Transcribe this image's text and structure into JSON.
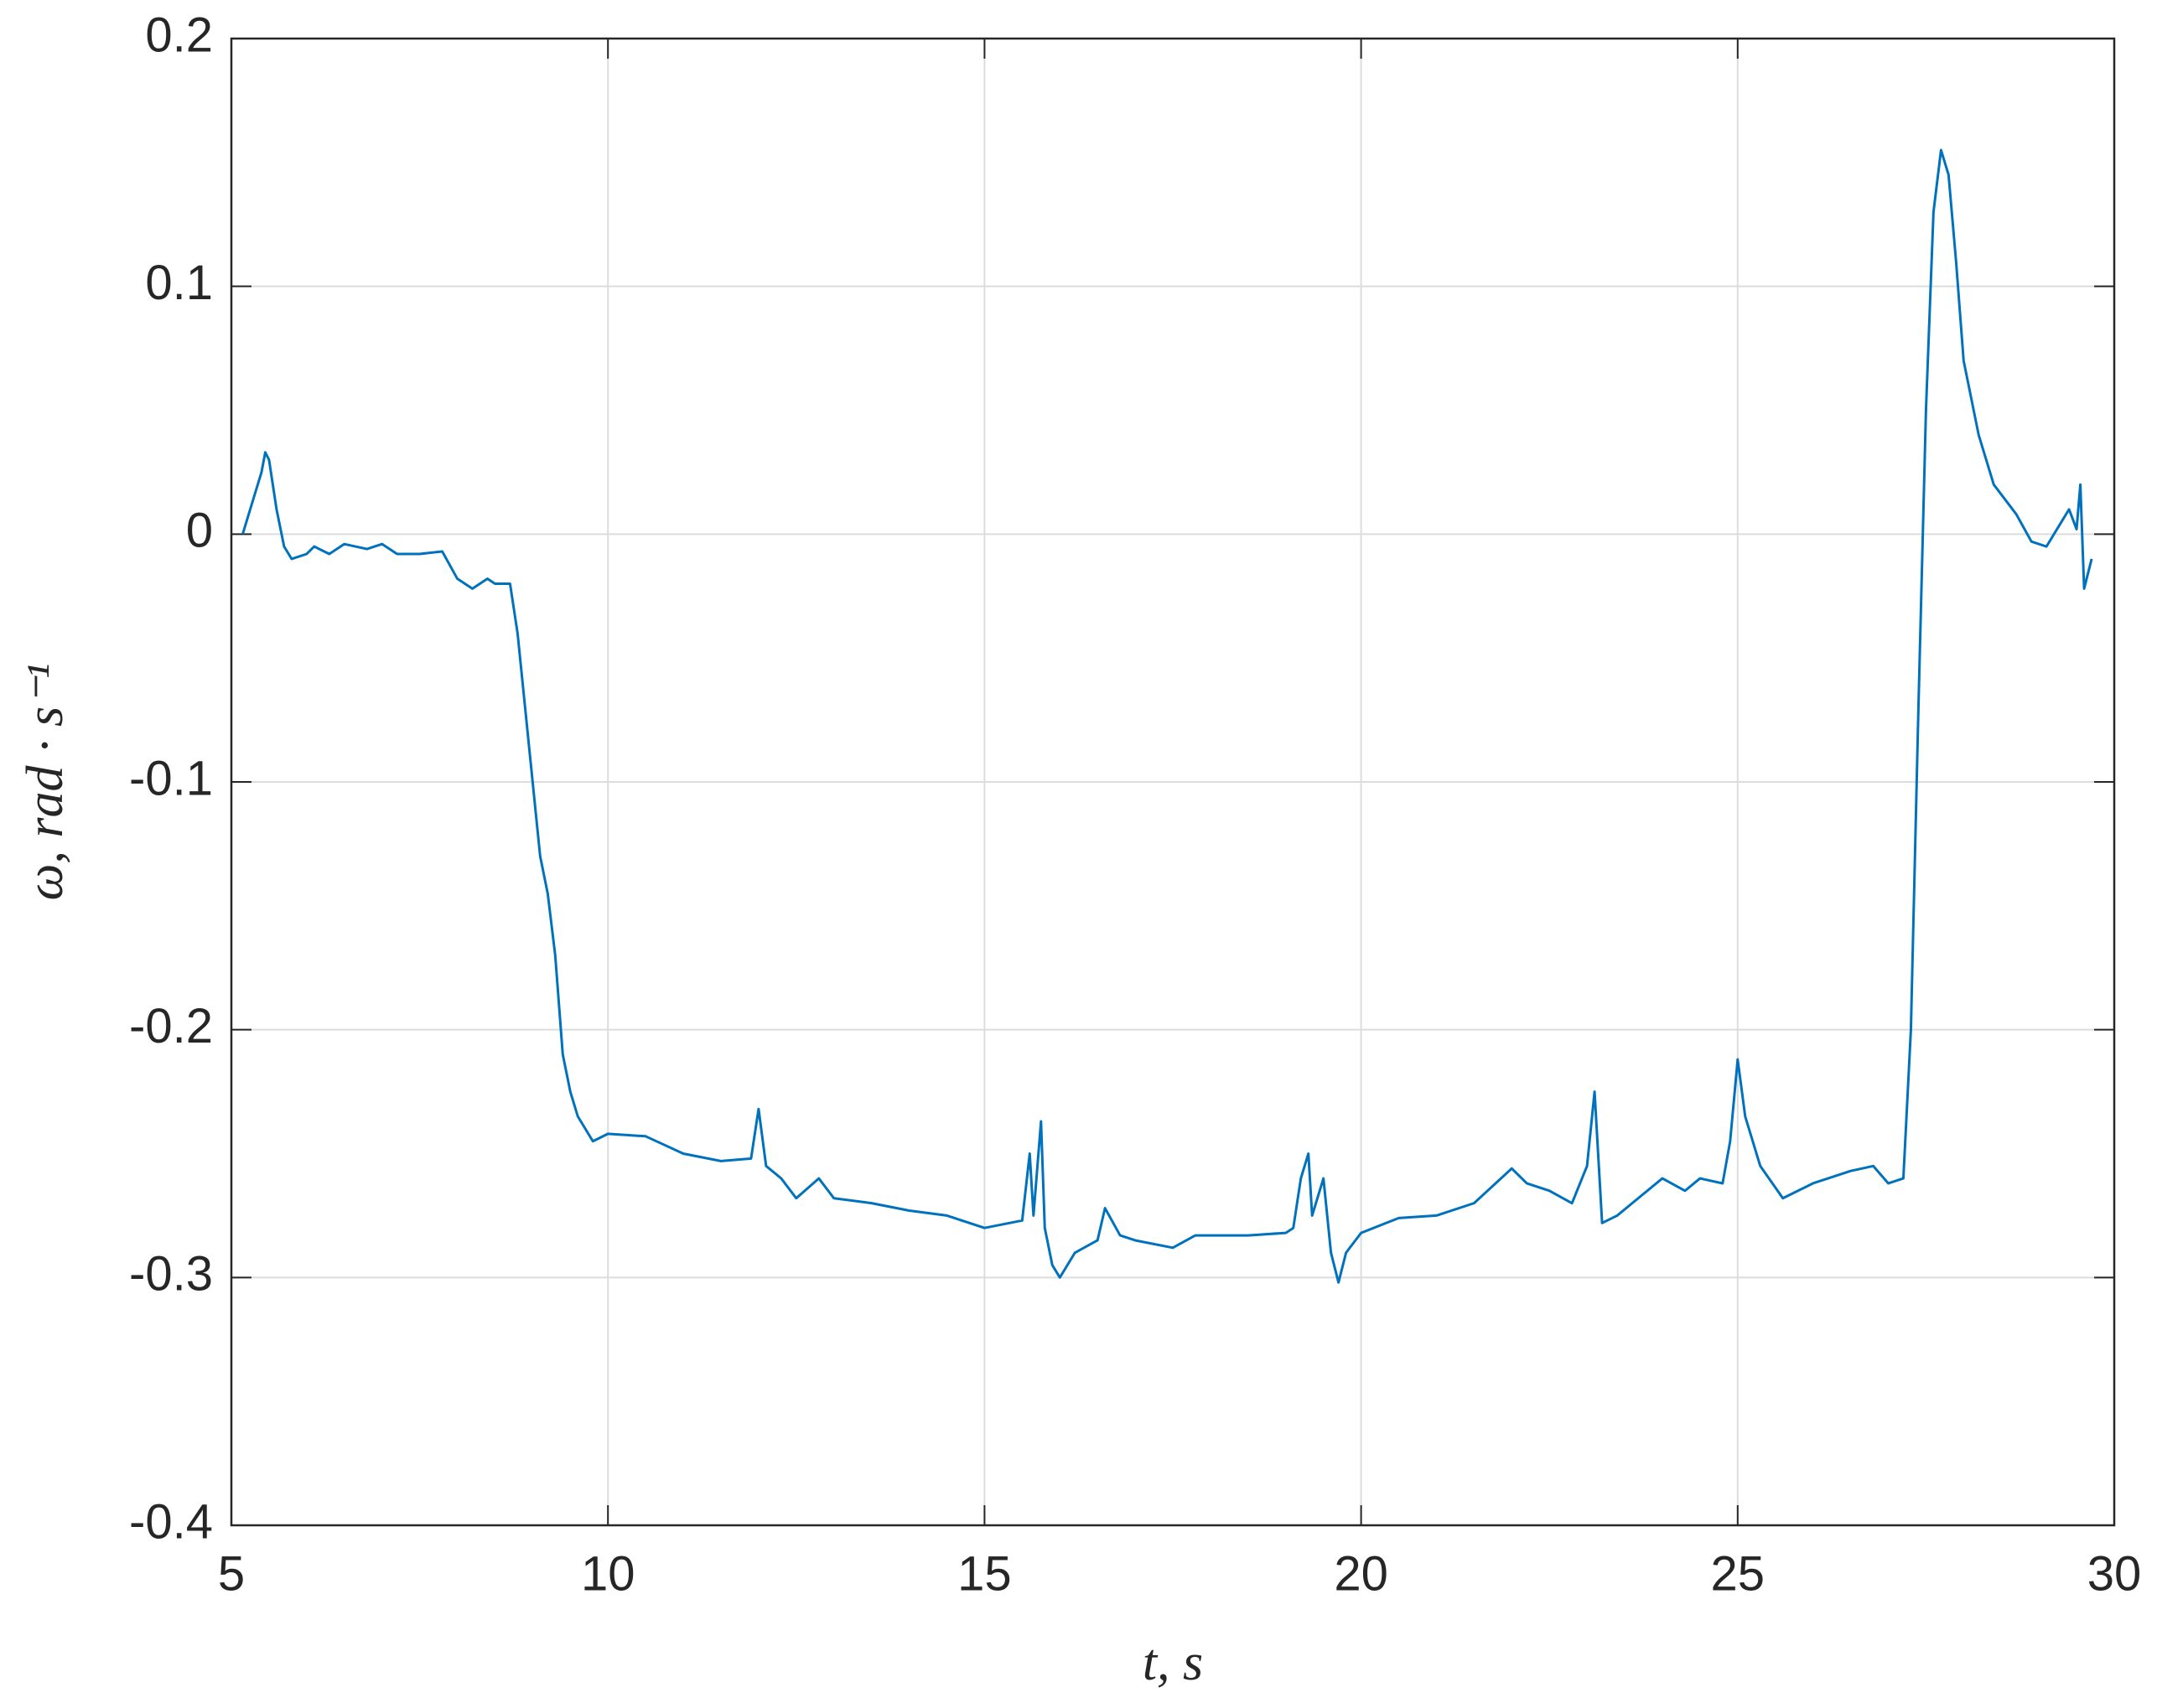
{
  "chart_data": {
    "type": "line",
    "xlabel": "t, s",
    "ylabel": "ω, rad · s⁻¹",
    "x": [
      5.15,
      5.3,
      5.4,
      5.45,
      5.5,
      5.6,
      5.7,
      5.8,
      6.0,
      6.1,
      6.3,
      6.5,
      6.8,
      7.0,
      7.2,
      7.5,
      7.8,
      8.0,
      8.2,
      8.4,
      8.5,
      8.7,
      8.8,
      8.9,
      9.0,
      9.1,
      9.2,
      9.3,
      9.4,
      9.5,
      9.6,
      9.8,
      10.0,
      10.5,
      11.0,
      11.5,
      11.9,
      12.0,
      12.1,
      12.3,
      12.5,
      12.8,
      13.0,
      13.5,
      14.0,
      14.5,
      15.0,
      15.5,
      15.6,
      15.65,
      15.75,
      15.8,
      15.9,
      16.0,
      16.2,
      16.5,
      16.6,
      16.8,
      17.0,
      17.5,
      17.8,
      18.0,
      18.5,
      19.0,
      19.1,
      19.2,
      19.3,
      19.35,
      19.5,
      19.6,
      19.7,
      19.8,
      20.0,
      20.5,
      21.0,
      21.5,
      22.0,
      22.2,
      22.5,
      22.8,
      23.0,
      23.1,
      23.2,
      23.4,
      23.6,
      24.0,
      24.3,
      24.5,
      24.8,
      24.9,
      25.0,
      25.1,
      25.3,
      25.6,
      26.0,
      26.5,
      26.8,
      27.0,
      27.2,
      27.3,
      27.4,
      27.5,
      27.6,
      27.7,
      27.8,
      27.9,
      28.0,
      28.2,
      28.4,
      28.7,
      28.9,
      29.1,
      29.3,
      29.4,
      29.5,
      29.55,
      29.6,
      29.7
    ],
    "values": [
      0,
      0.015,
      0.025,
      0.033,
      0.03,
      0.01,
      -0.005,
      -0.01,
      -0.008,
      -0.005,
      -0.008,
      -0.004,
      -0.006,
      -0.004,
      -0.008,
      -0.008,
      -0.007,
      -0.018,
      -0.022,
      -0.018,
      -0.02,
      -0.02,
      -0.04,
      -0.07,
      -0.1,
      -0.13,
      -0.145,
      -0.17,
      -0.21,
      -0.225,
      -0.235,
      -0.245,
      -0.242,
      -0.243,
      -0.25,
      -0.253,
      -0.252,
      -0.232,
      -0.255,
      -0.26,
      -0.268,
      -0.26,
      -0.268,
      -0.27,
      -0.273,
      -0.275,
      -0.28,
      -0.277,
      -0.25,
      -0.275,
      -0.237,
      -0.28,
      -0.295,
      -0.3,
      -0.29,
      -0.285,
      -0.272,
      -0.283,
      -0.285,
      -0.288,
      -0.283,
      -0.283,
      -0.283,
      -0.282,
      -0.28,
      -0.26,
      -0.25,
      -0.275,
      -0.26,
      -0.29,
      -0.302,
      -0.29,
      -0.282,
      -0.276,
      -0.275,
      -0.27,
      -0.256,
      -0.262,
      -0.265,
      -0.27,
      -0.255,
      -0.225,
      -0.278,
      -0.275,
      -0.27,
      -0.26,
      -0.265,
      -0.26,
      -0.262,
      -0.245,
      -0.212,
      -0.235,
      -0.255,
      -0.268,
      -0.262,
      -0.257,
      -0.255,
      -0.262,
      -0.26,
      -0.2,
      -0.07,
      0.05,
      0.13,
      0.155,
      0.145,
      0.11,
      0.07,
      0.04,
      0.02,
      0.008,
      -0.003,
      -0.005,
      0.005,
      0.01,
      0.002,
      0.02,
      -0.022,
      -0.01
    ],
    "color": "#0072bd",
    "xlim": [
      5,
      30
    ],
    "xticks": [
      5,
      10,
      15,
      20,
      25,
      30
    ],
    "ylim": [
      -0.4,
      0.2
    ],
    "yticks": [
      -0.4,
      -0.3,
      -0.2,
      -0.1,
      0,
      0.1,
      0.2
    ],
    "grid": true
  }
}
